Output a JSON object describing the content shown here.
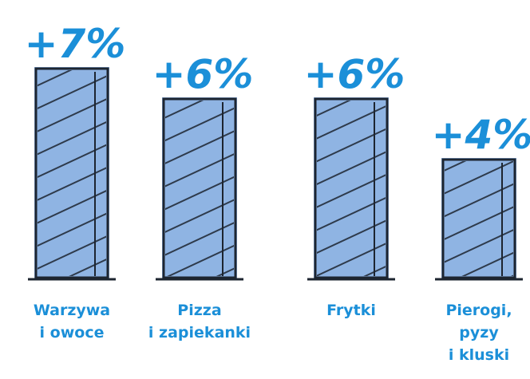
{
  "chart_data": {
    "type": "bar",
    "categories": [
      [
        "Warzywa",
        "i owoce"
      ],
      [
        "Pizza",
        "i zapiekanki"
      ],
      [
        "Frytki"
      ],
      [
        "Pierogi,",
        "pyzy",
        "i kluski"
      ]
    ],
    "values": [
      7,
      6,
      6,
      4
    ],
    "value_labels": [
      "+7%",
      "+6%",
      "+6%",
      "+4%"
    ],
    "color": "#8fb4e3"
  }
}
